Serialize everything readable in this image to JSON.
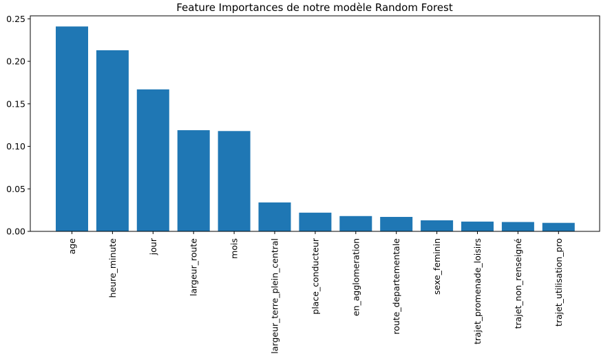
{
  "chart_data": {
    "type": "bar",
    "title": "Feature Importances de notre modèle Random Forest",
    "xlabel": "",
    "ylabel": "",
    "categories": [
      "age",
      "heure_minute",
      "jour",
      "largeur_route",
      "mois",
      "largeur_terre_plein_central",
      "place_conducteur",
      "en_agglomeration",
      "route_departementale",
      "sexe_feminin",
      "trajet_promenade_loisirs",
      "trajet_non_renseigné",
      "trajet_utilisation_pro"
    ],
    "values": [
      0.241,
      0.213,
      0.167,
      0.119,
      0.118,
      0.034,
      0.022,
      0.018,
      0.017,
      0.013,
      0.0115,
      0.011,
      0.01
    ],
    "ylim": [
      0,
      0.2535
    ],
    "yticks": [
      "0.00",
      "0.05",
      "0.10",
      "0.15",
      "0.20",
      "0.25"
    ],
    "bar_color": "#1f77b4",
    "grid": false,
    "legend": "none"
  }
}
